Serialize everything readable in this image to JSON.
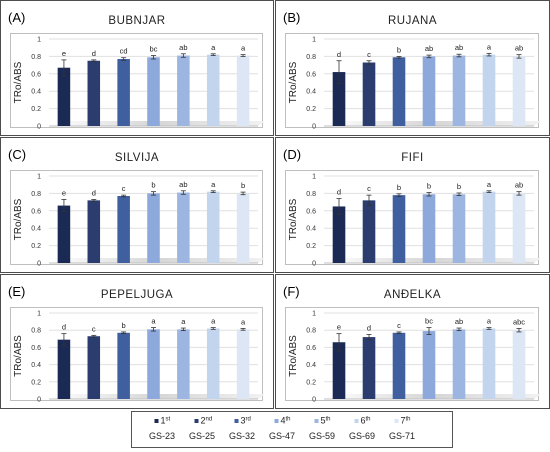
{
  "legend": {
    "items": [
      {
        "order": "1",
        "suffix": "st",
        "stage": "GS-23",
        "color": "#1b2a55"
      },
      {
        "order": "2",
        "suffix": "nd",
        "stage": "GS-25",
        "color": "#2a3d6e"
      },
      {
        "order": "3",
        "suffix": "rd",
        "stage": "GS-32",
        "color": "#3f5f9f"
      },
      {
        "order": "4",
        "suffix": "th",
        "stage": "GS-47",
        "color": "#8da8da"
      },
      {
        "order": "5",
        "suffix": "th",
        "stage": "GS-59",
        "color": "#9db6e1"
      },
      {
        "order": "6",
        "suffix": "th",
        "stage": "GS-69",
        "color": "#c2d4ee"
      },
      {
        "order": "7",
        "suffix": "th",
        "stage": "GS-71",
        "color": "#dde6f4"
      }
    ]
  },
  "chart_data": [
    {
      "type": "bar",
      "panel_label": "(A)",
      "title": "BUBNJAR",
      "ylabel": "TRo/ABS",
      "ylim": [
        0,
        1
      ],
      "yticks": [
        "0",
        "0.2",
        "0.4",
        "0.6",
        "0.8",
        "1"
      ],
      "grid": true,
      "categories": [
        "GS-23",
        "GS-25",
        "GS-32",
        "GS-47",
        "GS-59",
        "GS-69",
        "GS-71"
      ],
      "values": [
        0.67,
        0.75,
        0.77,
        0.79,
        0.81,
        0.82,
        0.81
      ],
      "errors": [
        0.09,
        0.01,
        0.015,
        0.02,
        0.02,
        0.01,
        0.01
      ],
      "letters": [
        "e",
        "d",
        "cd",
        "bc",
        "ab",
        "a",
        "a"
      ]
    },
    {
      "type": "bar",
      "panel_label": "(B)",
      "title": "RUJANA",
      "ylabel": "TRo/ABS",
      "ylim": [
        0,
        1
      ],
      "yticks": [
        "0",
        "0.2",
        "0.4",
        "0.6",
        "0.8",
        "1"
      ],
      "grid": true,
      "categories": [
        "GS-23",
        "GS-25",
        "GS-32",
        "GS-47",
        "GS-59",
        "GS-69",
        "GS-71"
      ],
      "values": [
        0.62,
        0.73,
        0.79,
        0.8,
        0.81,
        0.82,
        0.8
      ],
      "errors": [
        0.13,
        0.02,
        0.01,
        0.015,
        0.015,
        0.015,
        0.02
      ],
      "letters": [
        "d",
        "c",
        "b",
        "ab",
        "ab",
        "a",
        "ab"
      ]
    },
    {
      "type": "bar",
      "panel_label": "(C)",
      "title": "SILVIJA",
      "ylabel": "TRo/ABS",
      "ylim": [
        0,
        1
      ],
      "yticks": [
        "0",
        "0.2",
        "0.4",
        "0.6",
        "0.8",
        "1"
      ],
      "grid": true,
      "categories": [
        "GS-23",
        "GS-25",
        "GS-32",
        "GS-47",
        "GS-59",
        "GS-69",
        "GS-71"
      ],
      "values": [
        0.66,
        0.72,
        0.77,
        0.8,
        0.81,
        0.82,
        0.8
      ],
      "errors": [
        0.07,
        0.01,
        0.01,
        0.02,
        0.02,
        0.01,
        0.015
      ],
      "letters": [
        "e",
        "d",
        "c",
        "b",
        "ab",
        "a",
        "b"
      ]
    },
    {
      "type": "bar",
      "panel_label": "(D)",
      "title": "FIFI",
      "ylabel": "TRo/ABS",
      "ylim": [
        0,
        1
      ],
      "yticks": [
        "0",
        "0.2",
        "0.4",
        "0.6",
        "0.8",
        "1"
      ],
      "grid": true,
      "categories": [
        "GS-23",
        "GS-25",
        "GS-32",
        "GS-47",
        "GS-59",
        "GS-69",
        "GS-71"
      ],
      "values": [
        0.65,
        0.72,
        0.78,
        0.79,
        0.79,
        0.82,
        0.8
      ],
      "errors": [
        0.09,
        0.06,
        0.015,
        0.02,
        0.015,
        0.01,
        0.02
      ],
      "letters": [
        "d",
        "c",
        "b",
        "b",
        "b",
        "a",
        "ab"
      ]
    },
    {
      "type": "bar",
      "panel_label": "(E)",
      "title": "PEPELJUGA",
      "ylabel": "TRo/ABS",
      "ylim": [
        0,
        1
      ],
      "yticks": [
        "0",
        "0.2",
        "0.4",
        "0.6",
        "0.8",
        "1"
      ],
      "grid": true,
      "categories": [
        "GS-23",
        "GS-25",
        "GS-32",
        "GS-47",
        "GS-59",
        "GS-69",
        "GS-71"
      ],
      "values": [
        0.69,
        0.73,
        0.77,
        0.81,
        0.81,
        0.82,
        0.81
      ],
      "errors": [
        0.07,
        0.01,
        0.01,
        0.02,
        0.015,
        0.01,
        0.01
      ],
      "letters": [
        "d",
        "c",
        "b",
        "a",
        "a",
        "a",
        "a"
      ]
    },
    {
      "type": "bar",
      "panel_label": "(F)",
      "title": "ANĐELKA",
      "ylabel": "TRo/ABS",
      "ylim": [
        0,
        1
      ],
      "yticks": [
        "0",
        "0.2",
        "0.4",
        "0.6",
        "0.8",
        "1"
      ],
      "grid": true,
      "categories": [
        "GS-23",
        "GS-25",
        "GS-32",
        "GS-47",
        "GS-59",
        "GS-69",
        "GS-71"
      ],
      "values": [
        0.66,
        0.72,
        0.77,
        0.79,
        0.81,
        0.82,
        0.8
      ],
      "errors": [
        0.1,
        0.03,
        0.01,
        0.04,
        0.015,
        0.01,
        0.02
      ],
      "letters": [
        "e",
        "d",
        "c",
        "bc",
        "ab",
        "a",
        "abc"
      ]
    }
  ]
}
